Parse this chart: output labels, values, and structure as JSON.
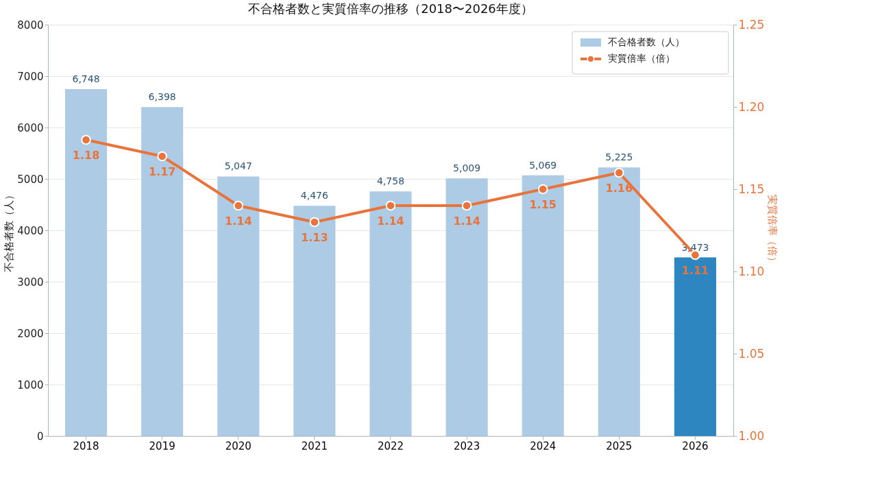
{
  "chart_data": {
    "type": "bar",
    "title": "不合格者数と実質倍率の推移（2018〜2026年度）",
    "categories": [
      "2018",
      "2019",
      "2020",
      "2021",
      "2022",
      "2023",
      "2024",
      "2025",
      "2026"
    ],
    "ylabel": "不合格者数（人）",
    "y2label": "実質倍率（倍）",
    "ylim": [
      0,
      8000
    ],
    "yticks": [
      0,
      1000,
      2000,
      3000,
      4000,
      5000,
      6000,
      7000,
      8000
    ],
    "y2lim": [
      1.0,
      1.25
    ],
    "y2ticks": [
      {
        "value": 1.0,
        "label": "1.00"
      },
      {
        "value": 1.05,
        "label": "1.05"
      },
      {
        "value": 1.1,
        "label": "1.10"
      },
      {
        "value": 1.15,
        "label": "1.15"
      },
      {
        "value": 1.2,
        "label": "1.20"
      },
      {
        "value": 1.25,
        "label": "1.25"
      }
    ],
    "grid": "y",
    "legend": "top right",
    "series": [
      {
        "name": "不合格者数（人）",
        "color": "#aecbe6",
        "colors": [
          "#aecbe6",
          "#aecbe6",
          "#aecbe6",
          "#aecbe6",
          "#aecbe6",
          "#aecbe6",
          "#aecbe6",
          "#aecbe6",
          "#2e86c1"
        ],
        "values": [
          6748,
          6398,
          5047,
          4476,
          4758,
          5009,
          5069,
          5225,
          3473
        ],
        "value_labels": [
          "6,748",
          "6,398",
          "5,047",
          "4,476",
          "4,758",
          "5,009",
          "5,069",
          "5,225",
          "3,473"
        ]
      },
      {
        "name": "実質倍率（倍）",
        "type": "line",
        "axis": "y2",
        "color": "#e8743b",
        "marker": "circle",
        "line_style": "solid",
        "values": [
          1.18,
          1.17,
          1.14,
          1.13,
          1.14,
          1.14,
          1.15,
          1.16,
          1.11
        ],
        "value_labels": [
          "1.18",
          "1.17",
          "1.14",
          "1.13",
          "1.14",
          "1.14",
          "1.15",
          "1.16",
          "1.11"
        ]
      }
    ]
  }
}
